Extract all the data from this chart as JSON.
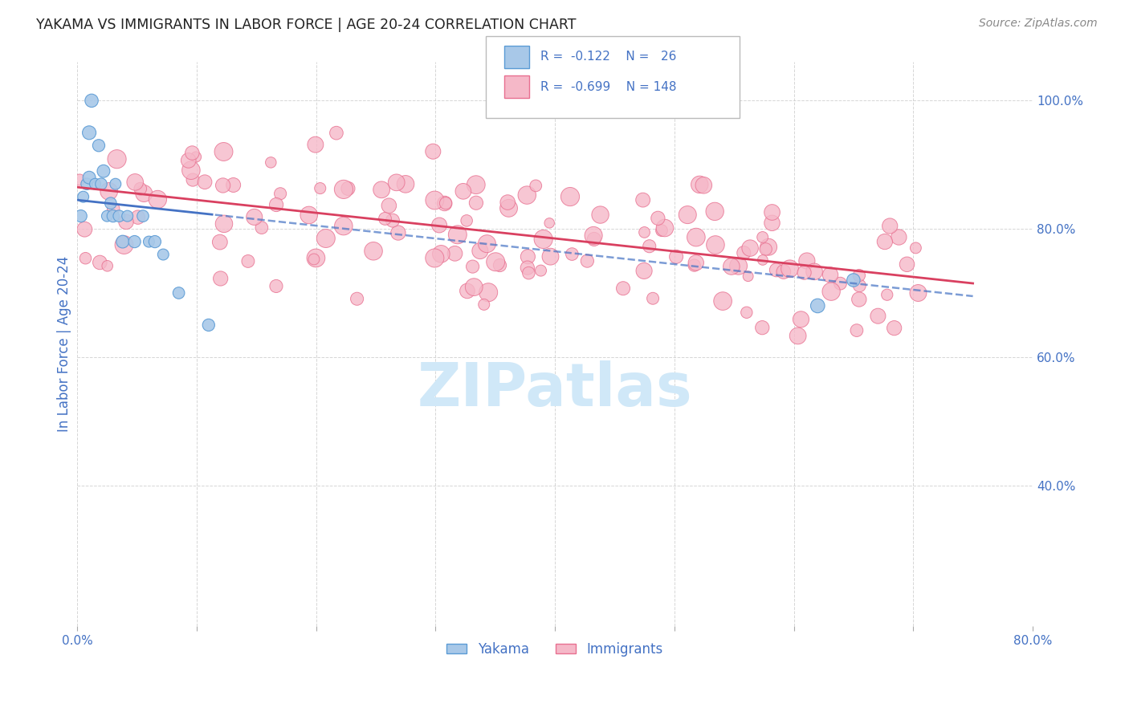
{
  "title": "YAKAMA VS IMMIGRANTS IN LABOR FORCE | AGE 20-24 CORRELATION CHART",
  "source": "Source: ZipAtlas.com",
  "ylabel": "In Labor Force | Age 20-24",
  "xlim": [
    0.0,
    0.8
  ],
  "ylim": [
    0.18,
    1.06
  ],
  "ytick_positions": [
    0.4,
    0.6,
    0.8,
    1.0
  ],
  "ytick_labels": [
    "40.0%",
    "60.0%",
    "80.0%",
    "100.0%"
  ],
  "xtick_positions": [
    0.0,
    0.1,
    0.2,
    0.3,
    0.4,
    0.5,
    0.6,
    0.7,
    0.8
  ],
  "yakama_color": "#a8c8e8",
  "immigrants_color": "#f5b8c8",
  "yakama_edge_color": "#5b9bd5",
  "immigrants_edge_color": "#e87090",
  "trend_yakama_color": "#4472c4",
  "trend_immigrants_color": "#d94060",
  "watermark_color": "#d0e8f8",
  "background_color": "#ffffff",
  "grid_color": "#cccccc",
  "title_color": "#222222",
  "axis_label_color": "#4472c4",
  "source_color": "#888888",
  "legend_r1": "R = -0.122",
  "legend_n1": "N =  26",
  "legend_r2": "R = -0.699",
  "legend_n2": "N = 148",
  "yakama_x": [
    0.003,
    0.005,
    0.008,
    0.01,
    0.01,
    0.012,
    0.015,
    0.018,
    0.02,
    0.022,
    0.025,
    0.028,
    0.03,
    0.032,
    0.035,
    0.038,
    0.042,
    0.048,
    0.055,
    0.06,
    0.065,
    0.072,
    0.085,
    0.11,
    0.62,
    0.65
  ],
  "yakama_y": [
    0.82,
    0.85,
    0.87,
    0.88,
    0.95,
    1.0,
    0.87,
    0.93,
    0.87,
    0.89,
    0.82,
    0.84,
    0.82,
    0.87,
    0.82,
    0.78,
    0.82,
    0.78,
    0.82,
    0.78,
    0.78,
    0.76,
    0.7,
    0.65,
    0.68,
    0.72
  ],
  "yakama_sizes": [
    120,
    100,
    110,
    130,
    150,
    140,
    100,
    120,
    110,
    130,
    100,
    110,
    120,
    100,
    110,
    130,
    100,
    120,
    110,
    100,
    120,
    100,
    110,
    120,
    160,
    140
  ],
  "trend_yk_x0": 0.0,
  "trend_yk_y0": 0.845,
  "trend_yk_x1": 0.75,
  "trend_yk_y1": 0.695,
  "trend_yk_solid_end": 0.115,
  "trend_imm_x0": 0.0,
  "trend_imm_y0": 0.865,
  "trend_imm_x1": 0.75,
  "trend_imm_y1": 0.715
}
